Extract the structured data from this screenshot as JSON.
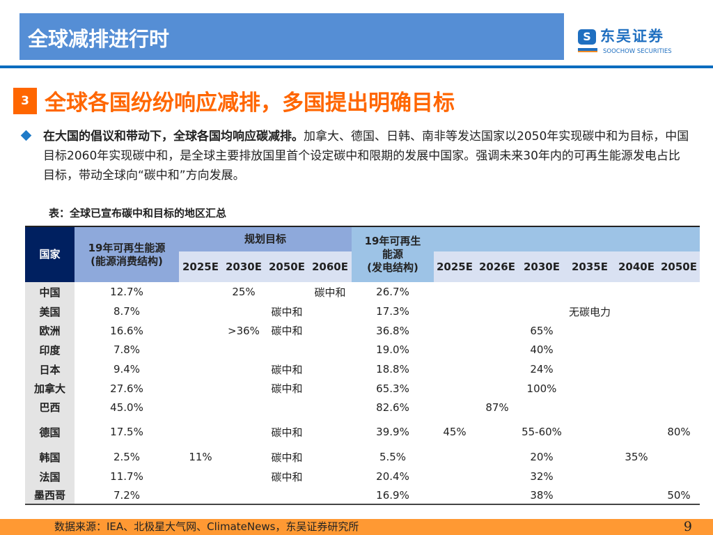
{
  "header": {
    "title": "全球减排进行时",
    "logo_cn": "东吴证券",
    "logo_en": "SOOCHOW SECURITIES",
    "logo_mark": "SCS"
  },
  "section": {
    "number": "3",
    "title": "全球各国纷纷响应减排，多国提出明确目标"
  },
  "paragraph": {
    "bold": "在大国的倡议和带动下，全球各国均响应碳减排。",
    "text": "加拿大、德国、日韩、南非等发达国家以2050年实现碳中和为目标，中国目标2060年实现碳中和，是全球主要排放国里首个设定碳中和限期的发展中国家。强调未来30年内的可再生能源发电占比目标，带动全球向“碳中和”方向发展。"
  },
  "table": {
    "caption": "表：全球已宣布碳中和目标的地区汇总",
    "headers": {
      "country": "国家",
      "consumption": "19年可再生能源\n(能源消费结构)",
      "plan": "规划目标",
      "plan_years": [
        "2025E",
        "2030E",
        "2050E",
        "2060E"
      ],
      "generation": "19年可再生\n能源\n(发电结构)",
      "gen_years": [
        "2025E",
        "2026E",
        "2030E",
        "2035E",
        "2040E",
        "2050E"
      ]
    },
    "rows": [
      {
        "country": "中国",
        "cells": [
          "12.7%",
          "",
          "25%",
          "",
          "碳中和",
          "26.7%",
          "",
          "",
          "",
          "",
          "",
          ""
        ]
      },
      {
        "country": "美国",
        "cells": [
          "8.7%",
          "",
          "",
          "碳中和",
          "",
          "17.3%",
          "",
          "",
          "",
          "无碳电力",
          "",
          ""
        ]
      },
      {
        "country": "欧洲",
        "cells": [
          "16.6%",
          "",
          ">36%",
          "碳中和",
          "",
          "36.8%",
          "",
          "",
          "65%",
          "",
          "",
          ""
        ]
      },
      {
        "country": "印度",
        "cells": [
          "7.8%",
          "",
          "",
          "",
          "",
          "19.0%",
          "",
          "",
          "40%",
          "",
          "",
          ""
        ]
      },
      {
        "country": "日本",
        "cells": [
          "9.4%",
          "",
          "",
          "碳中和",
          "",
          "18.8%",
          "",
          "",
          "24%",
          "",
          "",
          ""
        ]
      },
      {
        "country": "加拿大",
        "cells": [
          "27.6%",
          "",
          "",
          "碳中和",
          "",
          "65.3%",
          "",
          "",
          "100%",
          "",
          "",
          ""
        ]
      },
      {
        "country": "巴西",
        "cells": [
          "45.0%",
          "",
          "",
          "",
          "",
          "82.6%",
          "",
          "87%",
          "",
          "",
          "",
          ""
        ]
      },
      {
        "country": "德国",
        "cells": [
          "17.5%",
          "",
          "",
          "碳中和",
          "",
          "39.9%",
          "45%",
          "",
          "55-60%",
          "",
          "",
          "80%"
        ]
      },
      {
        "country": "韩国",
        "cells": [
          "2.5%",
          "11%",
          "",
          "碳中和",
          "",
          "5.5%",
          "",
          "",
          "20%",
          "",
          "35%",
          ""
        ]
      },
      {
        "country": "法国",
        "cells": [
          "11.7%",
          "",
          "",
          "碳中和",
          "",
          "20.4%",
          "",
          "",
          "32%",
          "",
          "",
          ""
        ]
      },
      {
        "country": "墨西哥",
        "cells": [
          "7.2%",
          "",
          "",
          "",
          "",
          "16.9%",
          "",
          "",
          "38%",
          "",
          "",
          "50%"
        ]
      }
    ]
  },
  "footer": {
    "source": "数据来源：IEA、北极星大气网、ClimateNews，东吴证券研究所",
    "page": "9"
  }
}
